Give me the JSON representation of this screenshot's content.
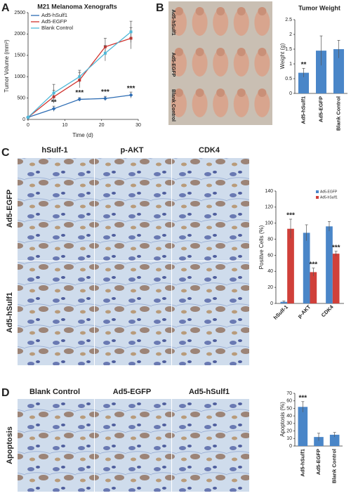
{
  "panel_labels": [
    "A",
    "B",
    "C",
    "D"
  ],
  "photo_b": {
    "row_labels": [
      "Ad5-hSulf1",
      "Ad5-EGFP",
      "Blank Control"
    ]
  },
  "histology_c": {
    "column_headers": [
      "hSulf-1",
      "p-AKT",
      "CDK4"
    ],
    "row_labels": [
      "Ad5-EGFP",
      "Ad5-hSulf1"
    ]
  },
  "histology_d": {
    "column_headers": [
      "Blank Control",
      "Ad5-EGFP",
      "Ad5-hSulf1"
    ],
    "row_label": "Apoptosis"
  },
  "chart_data": [
    {
      "type": "line",
      "title": "M21 Melanoma  Xenografts",
      "x_label": "Time (d)",
      "y_label": "Tumor Volume (mm³)",
      "x": [
        0,
        7,
        14,
        21,
        28
      ],
      "xlim": [
        0,
        30
      ],
      "xticks": [
        0,
        10,
        20,
        30
      ],
      "ylim": [
        0,
        2500
      ],
      "yticks": [
        0,
        500,
        1000,
        1500,
        2000,
        2500
      ],
      "legend": "upper left",
      "series": [
        {
          "name": "Ad5-hSulf1",
          "color": "#2e6db4",
          "values": [
            50,
            250,
            470,
            490,
            570
          ],
          "errors": [
            20,
            60,
            40,
            50,
            70
          ],
          "significance": [
            null,
            "**",
            "***",
            "***",
            "***"
          ]
        },
        {
          "name": "Ad5-EGFP",
          "color": "#d0322d",
          "values": [
            50,
            530,
            920,
            1700,
            1900
          ],
          "errors": [
            20,
            150,
            180,
            200,
            250
          ]
        },
        {
          "name": "Blank Control",
          "color": "#4fb8d8",
          "values": [
            50,
            620,
            1000,
            1550,
            2050
          ],
          "errors": [
            20,
            200,
            150,
            180,
            250
          ]
        }
      ]
    },
    {
      "type": "bar",
      "title": "Tumor  Weight",
      "y_label": "Weight (g)",
      "categories": [
        "Ad5-hSulf1",
        "Ad5-EGFP",
        "Blank Control"
      ],
      "values": [
        0.7,
        1.45,
        1.5
      ],
      "errors": [
        0.15,
        0.5,
        0.3
      ],
      "significance": [
        "**",
        null,
        null
      ],
      "color": "#4a86c8",
      "ylim": [
        0,
        2.5
      ],
      "yticks": [
        0,
        0.5,
        1,
        1.5,
        2,
        2.5
      ]
    },
    {
      "type": "bar",
      "y_label": "Positive Cells (%)",
      "categories": [
        "hSulf-1",
        "p-AKT",
        "CDK4"
      ],
      "ylim": [
        0,
        140
      ],
      "yticks": [
        0,
        20,
        40,
        60,
        80,
        100,
        120,
        140
      ],
      "legend": "upper right",
      "series": [
        {
          "name": "Ad5-EGFP",
          "color": "#4a86c8",
          "values": [
            2,
            88,
            96
          ],
          "errors": [
            1,
            10,
            6
          ]
        },
        {
          "name": "Ad5-hSulf1",
          "color": "#d0403a",
          "values": [
            93,
            39,
            62
          ],
          "errors": [
            12,
            5,
            3
          ],
          "significance": [
            "***",
            "***",
            "***"
          ]
        }
      ]
    },
    {
      "type": "bar",
      "y_label": "Apoptosis (%)",
      "categories": [
        "Ad5-hSulf1",
        "Ad5-EGFP",
        "Blank Control"
      ],
      "values": [
        52,
        12,
        15
      ],
      "errors": [
        7,
        5,
        3
      ],
      "significance": [
        "***",
        null,
        null
      ],
      "color": "#4a86c8",
      "ylim": [
        0,
        70
      ],
      "yticks": [
        0,
        10,
        20,
        30,
        40,
        50,
        60,
        70
      ]
    }
  ]
}
